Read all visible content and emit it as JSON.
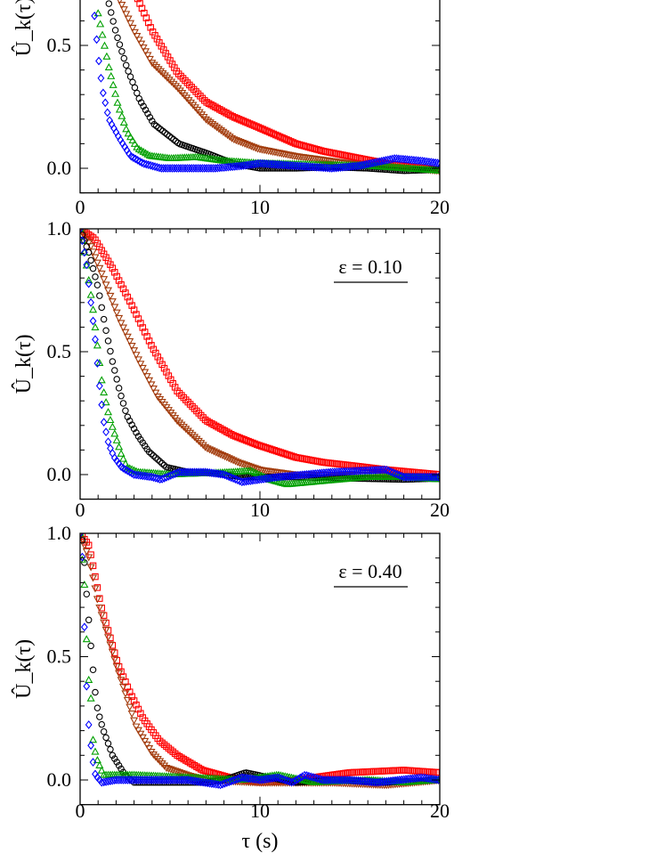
{
  "chart_data": [
    {
      "type": "scatter",
      "annotation": "",
      "xlabel": "",
      "ylabel": "Û_k(τ)",
      "xlim": [
        0,
        20
      ],
      "ylim": [
        -0.1,
        1.0
      ],
      "xticks": [
        "0",
        "10",
        "20"
      ],
      "yticks": [
        "0.0",
        "0.5"
      ],
      "grid": false,
      "series": [
        {
          "color": "#ff0000",
          "marker": "square",
          "points": [
            [
              3.2,
              0.69
            ],
            [
              4,
              0.56
            ],
            [
              5.4,
              0.39
            ],
            [
              7,
              0.27
            ],
            [
              8.5,
              0.21
            ],
            [
              9.9,
              0.167
            ],
            [
              12,
              0.1
            ],
            [
              13.5,
              0.07
            ],
            [
              15.3,
              0.044
            ],
            [
              17,
              0.02
            ],
            [
              18.5,
              0.005
            ],
            [
              20,
              -0.005
            ]
          ]
        },
        {
          "color": "#a33c0d",
          "marker": "triangle-down",
          "points": [
            [
              2.2,
              0.685
            ],
            [
              3,
              0.56
            ],
            [
              4,
              0.43
            ],
            [
              5.4,
              0.33
            ],
            [
              7,
              0.2
            ],
            [
              8.5,
              0.12
            ],
            [
              9.9,
              0.08
            ],
            [
              12,
              0.05
            ],
            [
              15,
              0.02
            ],
            [
              17,
              0.01
            ],
            [
              20,
              -0.01
            ]
          ]
        },
        {
          "color": "#000000",
          "marker": "circle",
          "points": [
            [
              1.6,
              0.67
            ],
            [
              2,
              0.55
            ],
            [
              2.6,
              0.41
            ],
            [
              3.3,
              0.28
            ],
            [
              4.1,
              0.18
            ],
            [
              5.5,
              0.1
            ],
            [
              7.1,
              0.06
            ],
            [
              8.5,
              0.02
            ],
            [
              10,
              0.0
            ],
            [
              12,
              0.0
            ],
            [
              14,
              0.005
            ],
            [
              16,
              0.0
            ],
            [
              18,
              -0.01
            ],
            [
              20,
              -0.005
            ]
          ]
        },
        {
          "color": "#00a000",
          "marker": "triangle-up",
          "points": [
            [
              1.0,
              0.63
            ],
            [
              1.3,
              0.52
            ],
            [
              1.6,
              0.41
            ],
            [
              2.1,
              0.26
            ],
            [
              2.6,
              0.15
            ],
            [
              3.2,
              0.08
            ],
            [
              3.9,
              0.05
            ],
            [
              5,
              0.04
            ],
            [
              6.5,
              0.045
            ],
            [
              8,
              0.03
            ],
            [
              10,
              0.02
            ],
            [
              13,
              0.015
            ],
            [
              16,
              0.01
            ],
            [
              18,
              0.0
            ],
            [
              20,
              -0.01
            ]
          ]
        },
        {
          "color": "#0000ff",
          "marker": "diamond",
          "points": [
            [
              0.8,
              0.62
            ],
            [
              1.0,
              0.46
            ],
            [
              1.24,
              0.32
            ],
            [
              1.6,
              0.2
            ],
            [
              2.2,
              0.12
            ],
            [
              2.8,
              0.05
            ],
            [
              3.5,
              0.02
            ],
            [
              4.5,
              0.0
            ],
            [
              6,
              0.0
            ],
            [
              7.5,
              0.0
            ],
            [
              9,
              0.01
            ],
            [
              10,
              0.02
            ],
            [
              12,
              0.01
            ],
            [
              14,
              0.0
            ],
            [
              15.5,
              0.01
            ],
            [
              17.5,
              0.04
            ],
            [
              19,
              0.03
            ],
            [
              20,
              0.02
            ]
          ]
        }
      ]
    },
    {
      "type": "scatter",
      "annotation": "ε = 0.10",
      "xlabel": "",
      "ylabel": "Û_k(τ)",
      "xlim": [
        0,
        20
      ],
      "ylim": [
        -0.1,
        1.0
      ],
      "xticks": [
        "0",
        "10",
        "20"
      ],
      "yticks": [
        "0.0",
        "0.5",
        "1.0"
      ],
      "grid": false,
      "series": [
        {
          "color": "#ff0000",
          "marker": "square",
          "points": [
            [
              0,
              1.0
            ],
            [
              0.8,
              0.96
            ],
            [
              1.8,
              0.84
            ],
            [
              2.8,
              0.7
            ],
            [
              4,
              0.52
            ],
            [
              5.4,
              0.34
            ],
            [
              7,
              0.22
            ],
            [
              8.5,
              0.16
            ],
            [
              9.9,
              0.12
            ],
            [
              12,
              0.07
            ],
            [
              13.5,
              0.05
            ],
            [
              15.3,
              0.035
            ],
            [
              17,
              0.02
            ],
            [
              18.5,
              0.01
            ],
            [
              20,
              0.0
            ]
          ]
        },
        {
          "color": "#a33c0d",
          "marker": "triangle-down",
          "points": [
            [
              0,
              1.0
            ],
            [
              0.6,
              0.93
            ],
            [
              1.3,
              0.8
            ],
            [
              2.2,
              0.63
            ],
            [
              3.3,
              0.46
            ],
            [
              4.3,
              0.32
            ],
            [
              5.4,
              0.22
            ],
            [
              7,
              0.11
            ],
            [
              8.8,
              0.05
            ],
            [
              10,
              0.02
            ],
            [
              12,
              0.0
            ],
            [
              16,
              0.0
            ],
            [
              20,
              -0.01
            ]
          ]
        },
        {
          "color": "#000000",
          "marker": "circle",
          "points": [
            [
              0,
              1.0
            ],
            [
              0.5,
              0.9
            ],
            [
              1.0,
              0.76
            ],
            [
              1.4,
              0.6
            ],
            [
              1.8,
              0.46
            ],
            [
              2.2,
              0.34
            ],
            [
              2.6,
              0.24
            ],
            [
              3.2,
              0.16
            ],
            [
              3.8,
              0.095
            ],
            [
              4.8,
              0.03
            ],
            [
              6,
              0.01
            ],
            [
              7.5,
              0.005
            ],
            [
              9,
              -0.01
            ],
            [
              12,
              -0.01
            ],
            [
              15,
              -0.015
            ],
            [
              18,
              -0.02
            ],
            [
              20,
              -0.015
            ]
          ]
        },
        {
          "color": "#00a000",
          "marker": "triangle-up",
          "points": [
            [
              0,
              1.0
            ],
            [
              0.3,
              0.88
            ],
            [
              0.74,
              0.66
            ],
            [
              1.0,
              0.5
            ],
            [
              1.24,
              0.36
            ],
            [
              1.6,
              0.24
            ],
            [
              1.9,
              0.17
            ],
            [
              2.3,
              0.08
            ],
            [
              2.6,
              0.03
            ],
            [
              3.2,
              0.01
            ],
            [
              5,
              0.0
            ],
            [
              7,
              0.005
            ],
            [
              8.5,
              0.01
            ],
            [
              9.5,
              0.015
            ],
            [
              10.5,
              -0.02
            ],
            [
              11.5,
              -0.04
            ],
            [
              13,
              -0.03
            ],
            [
              16,
              -0.01
            ],
            [
              18,
              -0.01
            ],
            [
              20,
              -0.02
            ]
          ]
        },
        {
          "color": "#0000ff",
          "marker": "diamond",
          "points": [
            [
              0,
              1.0
            ],
            [
              0.35,
              0.86
            ],
            [
              0.6,
              0.7
            ],
            [
              0.84,
              0.55
            ],
            [
              1.05,
              0.38
            ],
            [
              1.3,
              0.22
            ],
            [
              1.6,
              0.12
            ],
            [
              1.9,
              0.07
            ],
            [
              2.3,
              0.03
            ],
            [
              3,
              0.0
            ],
            [
              4,
              -0.01
            ],
            [
              4.5,
              -0.02
            ],
            [
              5.5,
              0.01
            ],
            [
              7,
              0.01
            ],
            [
              8,
              0.0
            ],
            [
              9,
              -0.03
            ],
            [
              10,
              -0.02
            ],
            [
              11,
              -0.01
            ],
            [
              14,
              0.01
            ],
            [
              17,
              0.02
            ],
            [
              18,
              -0.01
            ],
            [
              20,
              -0.01
            ]
          ]
        }
      ]
    },
    {
      "type": "scatter",
      "annotation": "ε = 0.40",
      "xlabel": "τ (s)",
      "ylabel": "Û_k(τ)",
      "xlim": [
        0,
        20
      ],
      "ylim": [
        -0.1,
        1.0
      ],
      "xticks": [
        "0",
        "10",
        "20"
      ],
      "yticks": [
        "0.0",
        "0.5",
        "1.0"
      ],
      "grid": false,
      "series": [
        {
          "color": "#ff0000",
          "marker": "square",
          "points": [
            [
              0,
              1.0
            ],
            [
              0.5,
              0.95
            ],
            [
              1.15,
              0.71
            ],
            [
              2.1,
              0.47
            ],
            [
              2.8,
              0.35
            ],
            [
              3.5,
              0.25
            ],
            [
              4.4,
              0.16
            ],
            [
              5.4,
              0.1
            ],
            [
              6.8,
              0.04
            ],
            [
              8.3,
              0.01
            ],
            [
              10,
              -0.01
            ],
            [
              12,
              0.0
            ],
            [
              15,
              0.03
            ],
            [
              18,
              0.04
            ],
            [
              20,
              0.03
            ]
          ]
        },
        {
          "color": "#a33c0d",
          "marker": "triangle-down",
          "points": [
            [
              0,
              1.0
            ],
            [
              0.5,
              0.9
            ],
            [
              1.0,
              0.72
            ],
            [
              2.0,
              0.47
            ],
            [
              3.1,
              0.22
            ],
            [
              4,
              0.11
            ],
            [
              4.8,
              0.05
            ],
            [
              6,
              0.02
            ],
            [
              7,
              0.0
            ],
            [
              10,
              -0.01
            ],
            [
              14,
              -0.01
            ],
            [
              17,
              -0.02
            ],
            [
              20,
              0.0
            ]
          ]
        },
        {
          "color": "#000000",
          "marker": "circle",
          "points": [
            [
              0,
              1.0
            ],
            [
              0.17,
              0.96
            ],
            [
              0.33,
              0.78
            ],
            [
              0.65,
              0.5
            ],
            [
              0.9,
              0.31
            ],
            [
              1.1,
              0.25
            ],
            [
              1.3,
              0.2
            ],
            [
              1.8,
              0.1
            ],
            [
              2.5,
              0.02
            ],
            [
              3,
              -0.01
            ],
            [
              5,
              -0.01
            ],
            [
              7,
              -0.01
            ],
            [
              8,
              0.0
            ],
            [
              9.2,
              0.03
            ],
            [
              10.5,
              0.01
            ],
            [
              12,
              -0.01
            ],
            [
              14,
              0.0
            ],
            [
              17,
              -0.01
            ],
            [
              20,
              0.0
            ]
          ]
        },
        {
          "color": "#00a000",
          "marker": "triangle-up",
          "points": [
            [
              0,
              1.0
            ],
            [
              0.1,
              0.91
            ],
            [
              0.3,
              0.74
            ],
            [
              0.36,
              0.57
            ],
            [
              0.44,
              0.43
            ],
            [
              0.6,
              0.33
            ],
            [
              0.7,
              0.17
            ],
            [
              0.9,
              0.09
            ],
            [
              1.3,
              0.02
            ],
            [
              3,
              0.02
            ],
            [
              6,
              0.01
            ],
            [
              9,
              0.0
            ],
            [
              11,
              0.02
            ],
            [
              13,
              -0.01
            ],
            [
              16,
              0.0
            ],
            [
              18,
              -0.01
            ],
            [
              20,
              0.0
            ]
          ]
        },
        {
          "color": "#0000ff",
          "marker": "diamond",
          "points": [
            [
              0,
              1.0
            ],
            [
              0.15,
              0.88
            ],
            [
              0.22,
              0.67
            ],
            [
              0.3,
              0.47
            ],
            [
              0.4,
              0.32
            ],
            [
              0.5,
              0.2
            ],
            [
              0.7,
              0.08
            ],
            [
              0.85,
              0.02
            ],
            [
              1.2,
              -0.01
            ],
            [
              2,
              0.0
            ],
            [
              4,
              0.0
            ],
            [
              6,
              0.0
            ],
            [
              7.8,
              -0.02
            ],
            [
              9,
              0.01
            ],
            [
              10,
              0.0
            ],
            [
              11,
              0.01
            ],
            [
              11.8,
              -0.01
            ],
            [
              12.5,
              0.02
            ],
            [
              13.5,
              0.0
            ],
            [
              15,
              0.0
            ],
            [
              16.5,
              -0.01
            ],
            [
              19,
              0.01
            ],
            [
              20,
              0.0
            ]
          ]
        }
      ]
    }
  ]
}
